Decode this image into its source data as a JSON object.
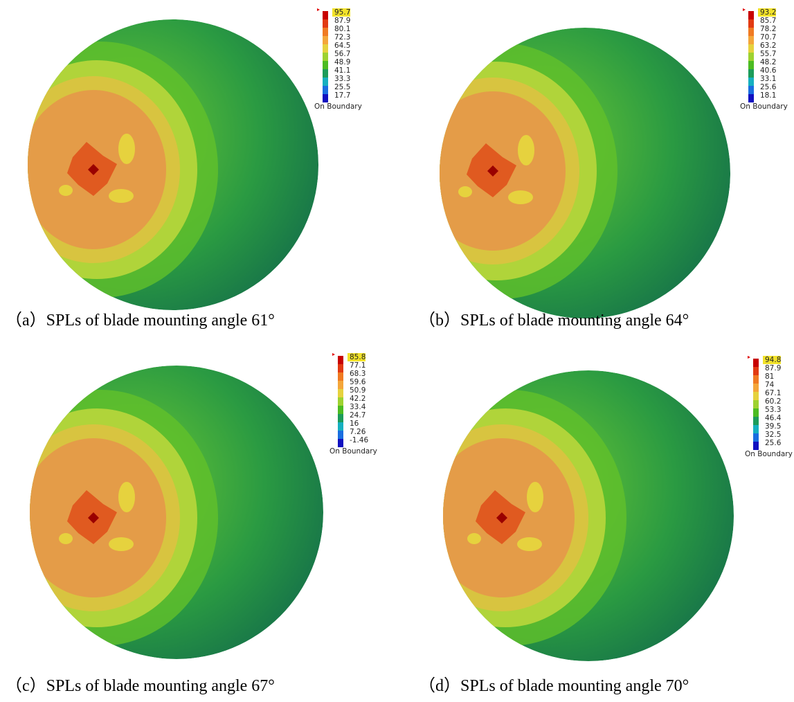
{
  "panels": [
    {
      "legend": {
        "values": [
          "95.7",
          "87.9",
          "80.1",
          "72.3",
          "64.5",
          "56.7",
          "48.9",
          "41.1",
          "33.3",
          "25.5",
          "17.7"
        ],
        "footer": "On Boundary"
      },
      "caption": "（a）SPLs of blade mounting angle 61°"
    },
    {
      "legend": {
        "values": [
          "93.2",
          "85.7",
          "78.2",
          "70.7",
          "63.2",
          "55.7",
          "48.2",
          "40.6",
          "33.1",
          "25.6",
          "18.1"
        ],
        "footer": "On Boundary"
      },
      "caption": "（b）SPLs of blade mounting angle  64°"
    },
    {
      "legend": {
        "values": [
          "85.8",
          "77.1",
          "68.3",
          "59.6",
          "50.9",
          "42.2",
          "33.4",
          "24.7",
          "16",
          "7.26",
          "-1.46"
        ],
        "footer": "On Boundary"
      },
      "caption": "（c）SPLs of blade mounting angle 67°"
    },
    {
      "legend": {
        "values": [
          "94.8",
          "87.9",
          "81",
          "74",
          "67.1",
          "60.2",
          "53.3",
          "46.4",
          "39.5",
          "32.5",
          "25.6"
        ],
        "footer": "On Boundary"
      },
      "caption": "（d）SPLs of  blade mounting angle 70°"
    }
  ]
}
